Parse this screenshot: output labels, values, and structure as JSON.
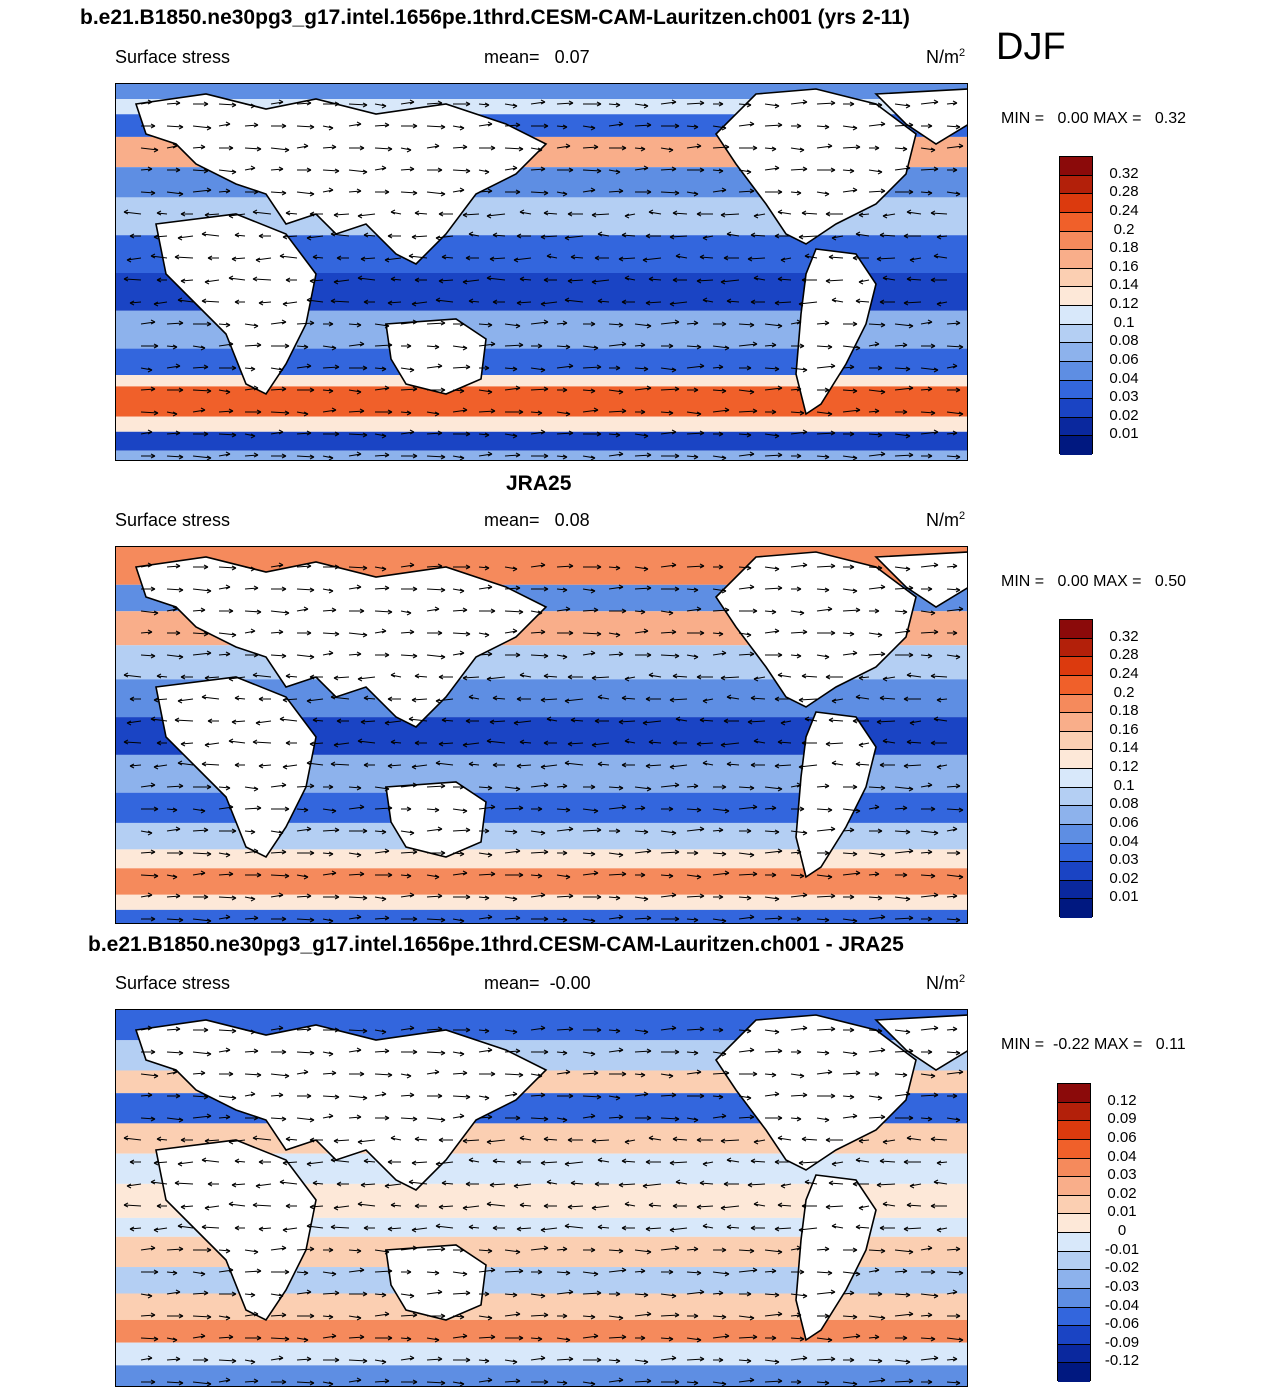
{
  "season": "DJF",
  "panels": [
    {
      "title": "b.e21.B1850.ne30pg3_g17.intel.1656pe.1thrd.CESM-CAM-Lauritzen.ch001 (yrs 2-11)",
      "variable": "Surface stress",
      "mean_label": "mean=",
      "mean_value": "0.07",
      "units": "N/m",
      "units_exp": "2",
      "min_label": "MIN =",
      "min_value": "0.00",
      "max_label": "MAX =",
      "max_value": "0.32",
      "levels": [
        "0.32",
        "0.28",
        "0.24",
        "0.2",
        "0.18",
        "0.16",
        "0.14",
        "0.12",
        "0.1",
        "0.08",
        "0.06",
        "0.04",
        "0.03",
        "0.02",
        "0.01"
      ],
      "colors": [
        "#8b0a0a",
        "#b3200a",
        "#dc3a0e",
        "#f0602a",
        "#f58a5c",
        "#f9ae8a",
        "#fbcfb2",
        "#fde8d8",
        "#d8e8fa",
        "#b4cff3",
        "#8db2ec",
        "#5e8ee3",
        "#3366dd",
        "#1a44c4",
        "#0a289e",
        "#001880"
      ]
    },
    {
      "title": "JRA25",
      "variable": "Surface stress",
      "mean_label": "mean=",
      "mean_value": "0.08",
      "units": "N/m",
      "units_exp": "2",
      "min_label": "MIN =",
      "min_value": "0.00",
      "max_label": "MAX =",
      "max_value": "0.50",
      "levels": [
        "0.32",
        "0.28",
        "0.24",
        "0.2",
        "0.18",
        "0.16",
        "0.14",
        "0.12",
        "0.1",
        "0.08",
        "0.06",
        "0.04",
        "0.03",
        "0.02",
        "0.01"
      ],
      "colors": [
        "#8b0a0a",
        "#b3200a",
        "#dc3a0e",
        "#f0602a",
        "#f58a5c",
        "#f9ae8a",
        "#fbcfb2",
        "#fde8d8",
        "#d8e8fa",
        "#b4cff3",
        "#8db2ec",
        "#5e8ee3",
        "#3366dd",
        "#1a44c4",
        "#0a289e",
        "#001880"
      ]
    },
    {
      "title": "b.e21.B1850.ne30pg3_g17.intel.1656pe.1thrd.CESM-CAM-Lauritzen.ch001 - JRA25",
      "variable": "Surface stress",
      "mean_label": "mean=",
      "mean_value": "-0.00",
      "units": "N/m",
      "units_exp": "2",
      "min_label": "MIN =",
      "min_value": "-0.22",
      "max_label": "MAX =",
      "max_value": "0.11",
      "levels": [
        "0.12",
        "0.09",
        "0.06",
        "0.04",
        "0.03",
        "0.02",
        "0.01",
        "0",
        "-0.01",
        "-0.02",
        "-0.03",
        "-0.04",
        "-0.06",
        "-0.09",
        "-0.12"
      ],
      "colors": [
        "#8b0a0a",
        "#b3200a",
        "#dc3a0e",
        "#f0602a",
        "#f58a5c",
        "#f9ae8a",
        "#fbcfb2",
        "#fde8d8",
        "#d8e8fa",
        "#b4cff3",
        "#8db2ec",
        "#5e8ee3",
        "#3366dd",
        "#1a44c4",
        "#0a289e",
        "#001880"
      ]
    }
  ]
}
